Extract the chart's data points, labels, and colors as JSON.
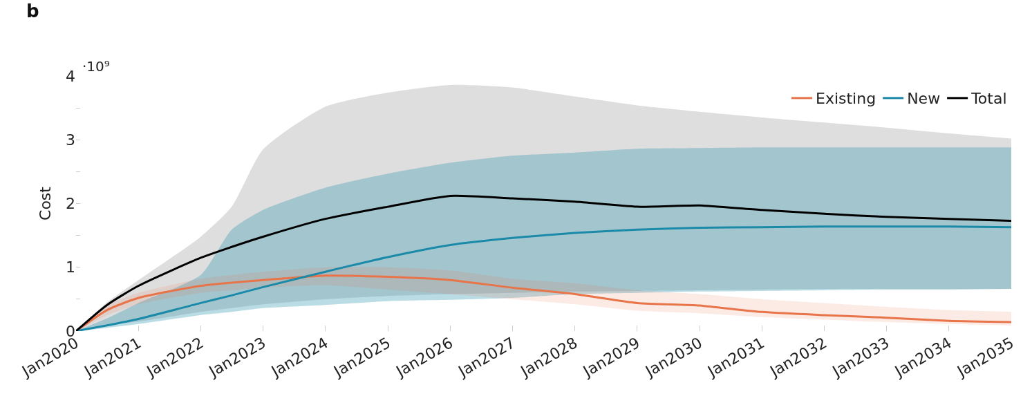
{
  "chart_data": {
    "type": "line",
    "ylabel": "Cost",
    "annotations": [
      "b",
      "·10⁹"
    ],
    "x": [
      "2020-01",
      "2020-07",
      "2021-01",
      "2022-01",
      "2022-07",
      "2023-01",
      "2024-01",
      "2025-01",
      "2026-01",
      "2027-01",
      "2028-01",
      "2029-01",
      "2030-01",
      "2031-01",
      "2032-01",
      "2033-01",
      "2034-01",
      "2035-01"
    ],
    "series": [
      {
        "name": "Existing",
        "color": "#e8744a",
        "values": [
          0,
          0.33,
          0.52,
          0.71,
          0.76,
          0.8,
          0.87,
          0.85,
          0.8,
          0.68,
          0.58,
          0.44,
          0.4,
          0.3,
          0.25,
          0.21,
          0.16,
          0.14
        ],
        "upper": [
          0,
          0.4,
          0.6,
          0.82,
          0.88,
          0.93,
          1.0,
          1.0,
          0.95,
          0.82,
          0.75,
          0.64,
          0.58,
          0.5,
          0.44,
          0.38,
          0.33,
          0.3
        ],
        "lower": [
          0,
          0.25,
          0.42,
          0.6,
          0.64,
          0.68,
          0.72,
          0.65,
          0.58,
          0.5,
          0.42,
          0.32,
          0.28,
          0.22,
          0.18,
          0.14,
          0.11,
          0.09
        ]
      },
      {
        "name": "New",
        "color": "#1a8aa8",
        "values": [
          0,
          0.09,
          0.19,
          0.44,
          0.56,
          0.69,
          0.93,
          1.16,
          1.35,
          1.46,
          1.54,
          1.59,
          1.62,
          1.63,
          1.64,
          1.64,
          1.64,
          1.63
        ],
        "upper": [
          0,
          0.2,
          0.44,
          0.88,
          1.59,
          1.9,
          2.25,
          2.47,
          2.64,
          2.75,
          2.8,
          2.86,
          2.87,
          2.88,
          2.88,
          2.88,
          2.88,
          2.88
        ],
        "lower": [
          0,
          0.05,
          0.11,
          0.25,
          0.3,
          0.36,
          0.41,
          0.47,
          0.49,
          0.52,
          0.58,
          0.6,
          0.62,
          0.63,
          0.64,
          0.65,
          0.65,
          0.66
        ]
      },
      {
        "name": "Total",
        "color": "#000000",
        "values": [
          0,
          0.41,
          0.71,
          1.15,
          1.32,
          1.48,
          1.76,
          1.95,
          2.12,
          2.08,
          2.03,
          1.95,
          1.97,
          1.9,
          1.84,
          1.79,
          1.76,
          1.73
        ],
        "upper": [
          0,
          0.45,
          0.8,
          1.48,
          1.95,
          2.85,
          3.52,
          3.74,
          3.86,
          3.82,
          3.68,
          3.54,
          3.44,
          3.35,
          3.27,
          3.19,
          3.1,
          3.02
        ],
        "lower": [
          0,
          0.1,
          0.15,
          0.3,
          0.36,
          0.42,
          0.5,
          0.55,
          0.58,
          0.6,
          0.62,
          0.63,
          0.64,
          0.65,
          0.66,
          0.66,
          0.66,
          0.66
        ]
      }
    ],
    "xlim": [
      "2020-01",
      "2035-01"
    ],
    "xticks": [
      {
        "value": "2020-01",
        "label": "Jan2020"
      },
      {
        "value": "2021-01",
        "label": "Jan2021"
      },
      {
        "value": "2022-01",
        "label": "Jan2022"
      },
      {
        "value": "2023-01",
        "label": "Jan2023"
      },
      {
        "value": "2024-01",
        "label": "Jan2024"
      },
      {
        "value": "2025-01",
        "label": "Jan2025"
      },
      {
        "value": "2026-01",
        "label": "Jan2026"
      },
      {
        "value": "2027-01",
        "label": "Jan2027"
      },
      {
        "value": "2028-01",
        "label": "Jan2028"
      },
      {
        "value": "2029-01",
        "label": "Jan2029"
      },
      {
        "value": "2030-01",
        "label": "Jan2030"
      },
      {
        "value": "2031-01",
        "label": "Jan2031"
      },
      {
        "value": "2032-01",
        "label": "Jan2032"
      },
      {
        "value": "2033-01",
        "label": "Jan2033"
      },
      {
        "value": "2034-01",
        "label": "Jan2034"
      },
      {
        "value": "2035-01",
        "label": "Jan2035"
      }
    ],
    "ylim": [
      0,
      4
    ],
    "yticks": [
      0,
      {
        "value": 0.5,
        "label": null
      },
      1,
      {
        "value": 1.5,
        "label": null
      },
      2,
      {
        "value": 2.5,
        "label": null
      },
      3,
      {
        "value": 3.5,
        "label": null
      },
      4
    ],
    "legend": "top right",
    "marker": "none",
    "line_style": "solid"
  }
}
